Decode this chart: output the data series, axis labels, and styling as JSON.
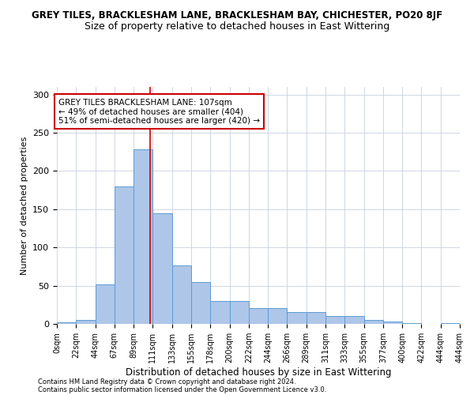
{
  "title_line1": "GREY TILES, BRACKLESHAM LANE, BRACKLESHAM BAY, CHICHESTER, PO20 8JF",
  "title_line2": "Size of property relative to detached houses in East Wittering",
  "xlabel": "Distribution of detached houses by size in East Wittering",
  "ylabel": "Number of detached properties",
  "footnote1": "Contains HM Land Registry data © Crown copyright and database right 2024.",
  "footnote2": "Contains public sector information licensed under the Open Government Licence v3.0.",
  "bin_labels": [
    "0sqm",
    "22sqm",
    "44sqm",
    "67sqm",
    "89sqm",
    "111sqm",
    "133sqm",
    "155sqm",
    "178sqm",
    "200sqm",
    "222sqm",
    "244sqm",
    "266sqm",
    "289sqm",
    "311sqm",
    "333sqm",
    "355sqm",
    "377sqm",
    "400sqm",
    "422sqm",
    "444sqm"
  ],
  "bar_heights": [
    2,
    5,
    52,
    180,
    228,
    145,
    76,
    55,
    30,
    30,
    21,
    21,
    15,
    15,
    10,
    10,
    5,
    3,
    1,
    0,
    1
  ],
  "bar_color": "#aec6e8",
  "bar_edge_color": "#5b9bd5",
  "vertical_line_x": 107,
  "bin_width": 22,
  "ylim": [
    0,
    310
  ],
  "yticks": [
    0,
    50,
    100,
    150,
    200,
    250,
    300
  ],
  "annotation_text": "GREY TILES BRACKLESHAM LANE: 107sqm\n← 49% of detached houses are smaller (404)\n51% of semi-detached houses are larger (420) →",
  "annotation_box_color": "#ffffff",
  "annotation_box_edge": "#cc0000",
  "vline_color": "#cc0000",
  "background_color": "#ffffff",
  "grid_color": "#c8d0de",
  "title_fontsize": 8.5,
  "subtitle_fontsize": 9,
  "annotation_fontsize": 7.5,
  "xlabel_fontsize": 8.5,
  "ylabel_fontsize": 8,
  "tick_fontsize": 7,
  "footnote_fontsize": 6
}
